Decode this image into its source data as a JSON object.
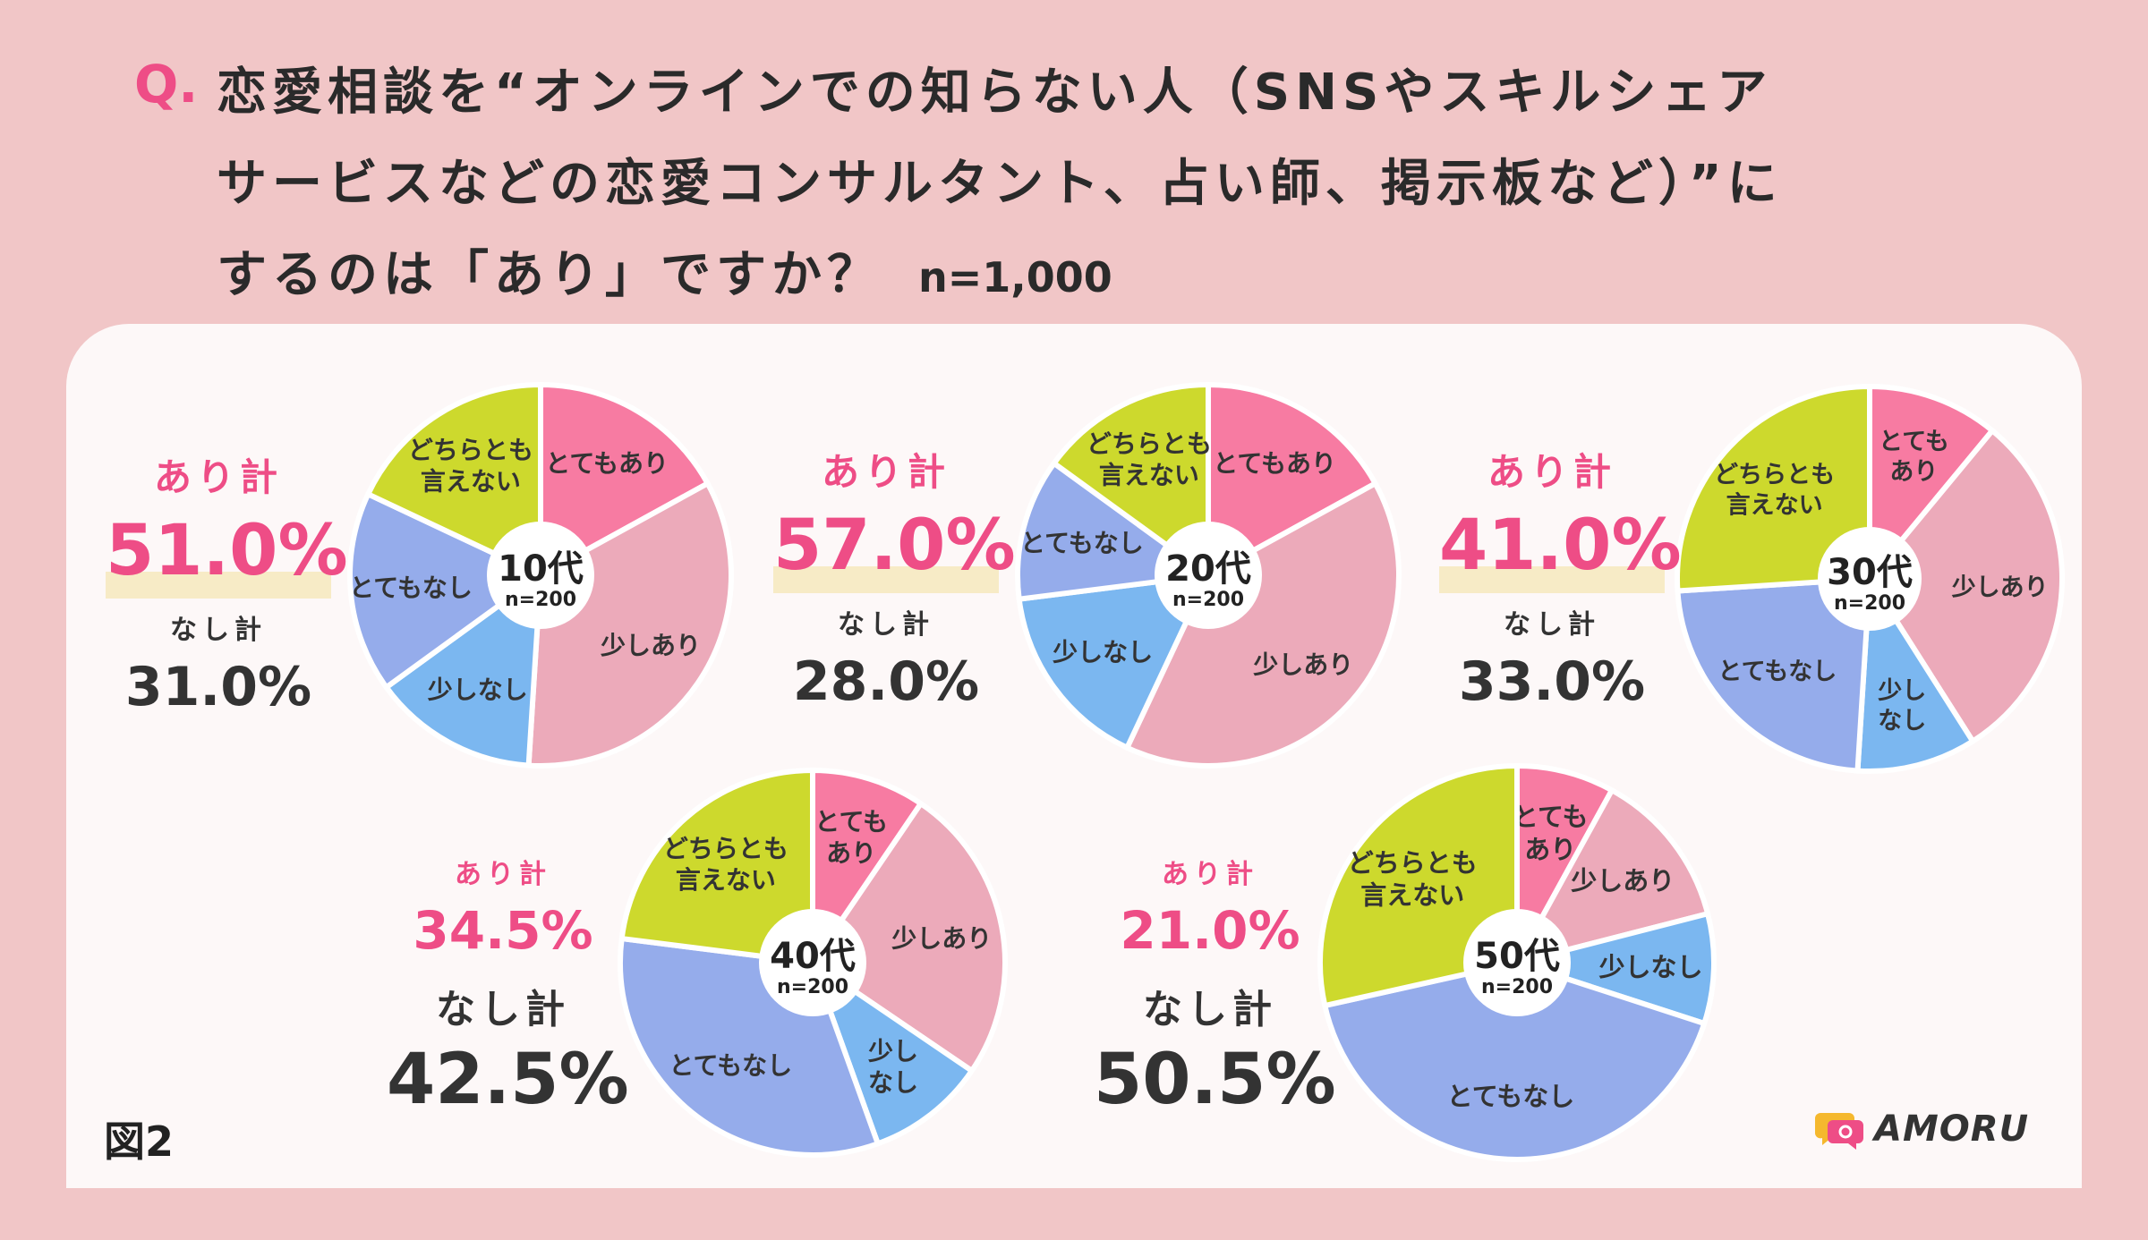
{
  "question": {
    "mark": "Q.",
    "line1": "恋愛相談を“オンラインでの知らない人（SNSやスキルシェア",
    "line2": "サービスなどの恋愛コンサルタント、占い師、掲示板など）”に",
    "line3": "するのは「あり」ですか？",
    "n_total": "n=1,000"
  },
  "colors": {
    "totemo_ari": "#f77ba2",
    "sukoshi_ari": "#ecaaba",
    "sukoshi_nashi": "#7bb7f0",
    "totemo_nashi": "#95aceb",
    "dochira": "#cdd92d",
    "accent": "#ee4d86"
  },
  "groups": [
    {
      "age": "10代",
      "n": "n=200",
      "ari_label": "あり計",
      "ari_total": "51.0%",
      "nashi_label": "なし計",
      "nashi_total": "31.0%"
    },
    {
      "age": "20代",
      "n": "n=200",
      "ari_label": "あり計",
      "ari_total": "57.0%",
      "nashi_label": "なし計",
      "nashi_total": "28.0%"
    },
    {
      "age": "30代",
      "n": "n=200",
      "ari_label": "あり計",
      "ari_total": "41.0%",
      "nashi_label": "なし計",
      "nashi_total": "33.0%"
    },
    {
      "age": "40代",
      "n": "n=200",
      "ari_label": "あり計",
      "ari_total": "34.5%",
      "nashi_label": "なし計",
      "nashi_total": "42.5%"
    },
    {
      "age": "50代",
      "n": "n=200",
      "ari_label": "あり計",
      "ari_total": "21.0%",
      "nashi_label": "なし計",
      "nashi_total": "50.5%"
    }
  ],
  "chart_data": [
    {
      "type": "pie",
      "title": "10代",
      "n": 200,
      "categories": [
        "とてもあり",
        "少しあり",
        "少しなし",
        "とてもなし",
        "どちらとも言えない"
      ],
      "values": [
        17.0,
        34.0,
        14.0,
        17.0,
        18.0
      ]
    },
    {
      "type": "pie",
      "title": "20代",
      "n": 200,
      "categories": [
        "とてもあり",
        "少しあり",
        "少しなし",
        "とてもなし",
        "どちらとも言えない"
      ],
      "values": [
        17.0,
        40.0,
        16.0,
        12.0,
        15.0
      ]
    },
    {
      "type": "pie",
      "title": "30代",
      "n": 200,
      "categories": [
        "とてもあり",
        "少しあり",
        "少しなし",
        "とてもなし",
        "どちらとも言えない"
      ],
      "values": [
        11.0,
        30.0,
        10.0,
        23.0,
        26.0
      ]
    },
    {
      "type": "pie",
      "title": "40代",
      "n": 200,
      "categories": [
        "とてもあり",
        "少しあり",
        "少しなし",
        "とてもなし",
        "どちらとも言えない"
      ],
      "values": [
        9.5,
        25.0,
        10.0,
        32.5,
        23.0
      ]
    },
    {
      "type": "pie",
      "title": "50代",
      "n": 200,
      "categories": [
        "とてもあり",
        "少しあり",
        "少しなし",
        "とてもなし",
        "どちらとも言えない"
      ],
      "values": [
        8.0,
        13.0,
        9.0,
        41.5,
        28.5
      ]
    }
  ],
  "slice_labels": [
    [
      "とてもあり",
      "少しあり",
      "少しなし",
      "とてもなし",
      "どちらとも|言えない"
    ],
    [
      "とてもあり",
      "少しあり",
      "少しなし",
      "とてもなし",
      "どちらとも|言えない"
    ],
    [
      "とても|あり",
      "少しあり",
      "少し|なし",
      "とてもなし",
      "どちらとも|言えない"
    ],
    [
      "とても|あり",
      "少しあり",
      "少し|なし",
      "とてもなし",
      "どちらとも|言えない"
    ],
    [
      "とても|あり",
      "少しあり",
      "少しなし",
      "とてもなし",
      "どちらとも|言えない"
    ]
  ],
  "footer": {
    "figure_label": "図2",
    "brand": "AMORU"
  }
}
